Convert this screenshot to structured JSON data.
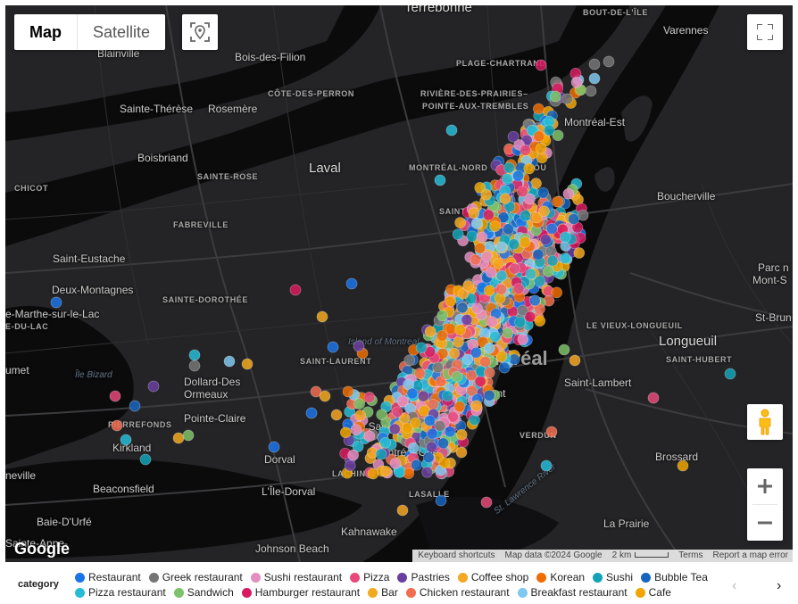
{
  "map_type": {
    "map": "Map",
    "satellite": "Satellite"
  },
  "places": [
    {
      "t": "Terrebonne",
      "c": "big"
    },
    {
      "t": "BOUT-DE-L'ÎLE",
      "c": "small"
    },
    {
      "t": "Varennes",
      "c": ""
    },
    {
      "t": "Blainville",
      "c": ""
    },
    {
      "t": "Bois-des-Filion",
      "c": ""
    },
    {
      "t": "PLAGE-CHARTRAND",
      "c": "small"
    },
    {
      "t": "CÔTE-DES-PERRON",
      "c": "small"
    },
    {
      "t": "RIVIÈRE-DES-PRAIRIES–",
      "c": "small"
    },
    {
      "t": "POINTE-AUX-TREMBLES",
      "c": "small"
    },
    {
      "t": "Sainte-Thérèse",
      "c": ""
    },
    {
      "t": "Rosemère",
      "c": ""
    },
    {
      "t": "Montréal-Est",
      "c": ""
    },
    {
      "t": "Boisbriand",
      "c": ""
    },
    {
      "t": "Laval",
      "c": "big"
    },
    {
      "t": "MONTRÉAL-NORD",
      "c": "small"
    },
    {
      "t": "ANJOU",
      "c": "small"
    },
    {
      "t": "CHICOT",
      "c": "small"
    },
    {
      "t": "SAINTE-ROSE",
      "c": "small"
    },
    {
      "t": "Boucherville",
      "c": ""
    },
    {
      "t": "FABREVILLE",
      "c": "small"
    },
    {
      "t": "SAINT-LÉONARD",
      "c": "small"
    },
    {
      "t": "Saint-Eustache",
      "c": ""
    },
    {
      "t": "Parc n",
      "c": ""
    },
    {
      "t": "Mont-S",
      "c": ""
    },
    {
      "t": "Deux-Montagnes",
      "c": ""
    },
    {
      "t": "SAINTE-DOROTHÉE",
      "c": "small"
    },
    {
      "t": "e-Marthe-sur-le-Lac",
      "c": ""
    },
    {
      "t": "LE VIEUX-LONGUEUIL",
      "c": "small"
    },
    {
      "t": "St-Brun",
      "c": ""
    },
    {
      "t": "E-DU-LAC",
      "c": "small"
    },
    {
      "t": "Longueuil",
      "c": "big"
    },
    {
      "t": "umet",
      "c": ""
    },
    {
      "t": "SAINT-LAURENT",
      "c": "small"
    },
    {
      "t": "Montréal",
      "c": "huge"
    },
    {
      "t": "SAINT-HUBERT",
      "c": "small"
    },
    {
      "t": "Île Bizard",
      "c": "water"
    },
    {
      "t": "Dollard-Des",
      "c": ""
    },
    {
      "t": "Ormeaux",
      "c": ""
    },
    {
      "t": "Saint-Lambert",
      "c": ""
    },
    {
      "t": "Westmount",
      "c": ""
    },
    {
      "t": "Pointe-Claire",
      "c": ""
    },
    {
      "t": "PIERREFONDS",
      "c": "small"
    },
    {
      "t": "Côte Saint-Luc",
      "c": ""
    },
    {
      "t": "Kirkland",
      "c": ""
    },
    {
      "t": "VERDUN",
      "c": "small"
    },
    {
      "t": "Dorval",
      "c": ""
    },
    {
      "t": "Montréal-Ouest",
      "c": ""
    },
    {
      "t": "Brossard",
      "c": ""
    },
    {
      "t": "neville",
      "c": ""
    },
    {
      "t": "LACHINE",
      "c": "small"
    },
    {
      "t": "Beaconsfield",
      "c": ""
    },
    {
      "t": "L'Île-Dorval",
      "c": ""
    },
    {
      "t": "LASALLE",
      "c": "small"
    },
    {
      "t": "St. Lawrence River",
      "c": "water"
    },
    {
      "t": "Baie-D'Urfé",
      "c": ""
    },
    {
      "t": "La Prairie",
      "c": ""
    },
    {
      "t": "Kahnawake",
      "c": ""
    },
    {
      "t": "Sainte-Anne-",
      "c": ""
    },
    {
      "t": "Johnson Beach",
      "c": ""
    },
    {
      "t": "Island of Montreal",
      "c": "water"
    }
  ],
  "logo": "Google",
  "attribution": {
    "shortcuts": "Keyboard shortcuts",
    "data": "Map data ©2024 Google",
    "scale": "2 km",
    "terms": "Terms",
    "report": "Report a map error"
  },
  "legend": {
    "title": "category",
    "rows": [
      [
        {
          "label": "Restaurant",
          "color": "#1a73e8"
        },
        {
          "label": "Greek restaurant",
          "color": "#757575"
        },
        {
          "label": "Sushi restaurant",
          "color": "#e48dbf"
        },
        {
          "label": "Pizza",
          "color": "#e8497a"
        },
        {
          "label": "Pastries",
          "color": "#6b3fa0"
        },
        {
          "label": "Coffee shop",
          "color": "#f5a623"
        },
        {
          "label": "Korean",
          "color": "#ef6c00"
        },
        {
          "label": "Sushi",
          "color": "#12a3b8"
        },
        {
          "label": "Bubble Tea",
          "color": "#1565c0"
        }
      ],
      [
        {
          "label": "Pizza restaurant",
          "color": "#26bcd6"
        },
        {
          "label": "Sandwich",
          "color": "#7cc26a"
        },
        {
          "label": "Hamburger restaurant",
          "color": "#d81b60"
        },
        {
          "label": "Bar",
          "color": "#f2a91e"
        },
        {
          "label": "Chicken restaurant",
          "color": "#f26c4f"
        },
        {
          "label": "Breakfast restaurant",
          "color": "#7ec8f0"
        },
        {
          "label": "Cafe",
          "color": "#f0a500"
        }
      ]
    ]
  }
}
